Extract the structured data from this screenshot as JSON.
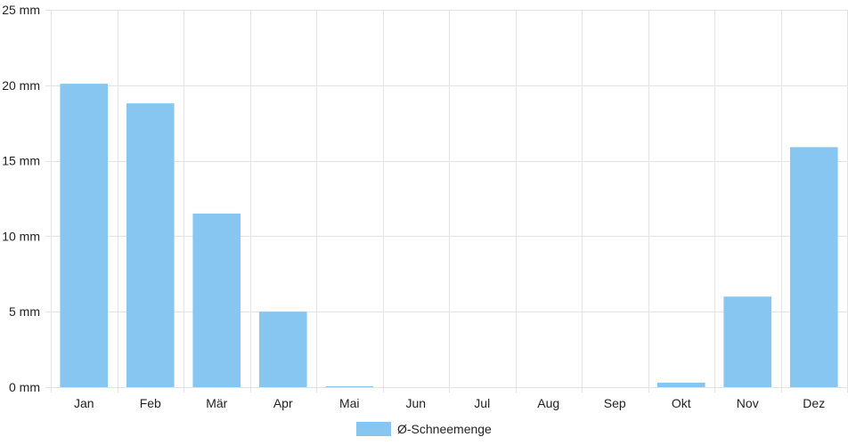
{
  "chart_data": {
    "type": "bar",
    "categories": [
      "Jan",
      "Feb",
      "Mär",
      "Apr",
      "Mai",
      "Jun",
      "Jul",
      "Aug",
      "Sep",
      "Okt",
      "Nov",
      "Dez"
    ],
    "series": [
      {
        "name": "Ø-Schneemenge",
        "values": [
          20.1,
          18.8,
          11.5,
          5.0,
          0.05,
          0,
          0,
          0,
          0,
          0.3,
          6.0,
          15.9
        ]
      }
    ],
    "ylim": [
      0,
      25
    ],
    "yticks": [
      0,
      5,
      10,
      15,
      20,
      25
    ],
    "y_tick_suffix": " mm",
    "grid": true,
    "legend_position": "bottom-center",
    "bar_color": "#87c6f1",
    "grid_color": "#e3e3e3"
  }
}
